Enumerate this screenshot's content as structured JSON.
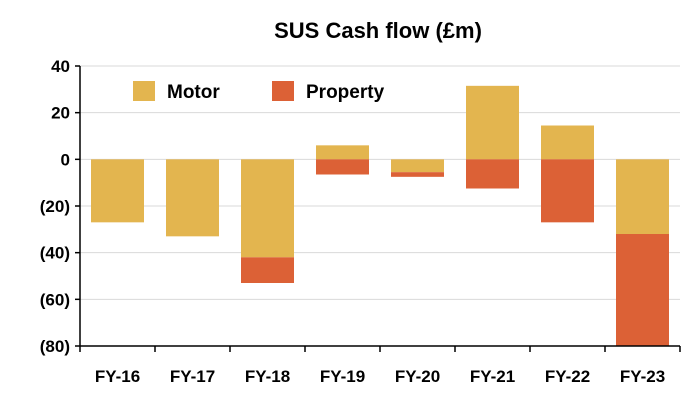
{
  "chart_data": {
    "type": "bar",
    "stacked": true,
    "title": "SUS Cash flow (£m)",
    "xlabel": "",
    "ylabel": "",
    "categories": [
      "FY-16",
      "FY-17",
      "FY-18",
      "FY-19",
      "FY-20",
      "FY-21",
      "FY-22",
      "FY-23"
    ],
    "series": [
      {
        "name": "Motor",
        "color": "#E3B54F",
        "values": [
          -27,
          -33,
          -42,
          6,
          -5.5,
          31.5,
          14.5,
          -32
        ]
      },
      {
        "name": "Property",
        "color": "#DC6136",
        "values": [
          0,
          0,
          -11,
          -6.5,
          -2,
          -12.5,
          -27,
          -48
        ]
      }
    ],
    "ylim": [
      -80,
      40
    ],
    "yticks": [
      {
        "value": 40,
        "label": "40"
      },
      {
        "value": 20,
        "label": "20"
      },
      {
        "value": 0,
        "label": "0"
      },
      {
        "value": -20,
        "label": "(20)"
      },
      {
        "value": -40,
        "label": "(40)"
      },
      {
        "value": -60,
        "label": "(60)"
      },
      {
        "value": -80,
        "label": "(80)"
      }
    ],
    "grid": true,
    "legend_position": "top-left, inside plot"
  }
}
